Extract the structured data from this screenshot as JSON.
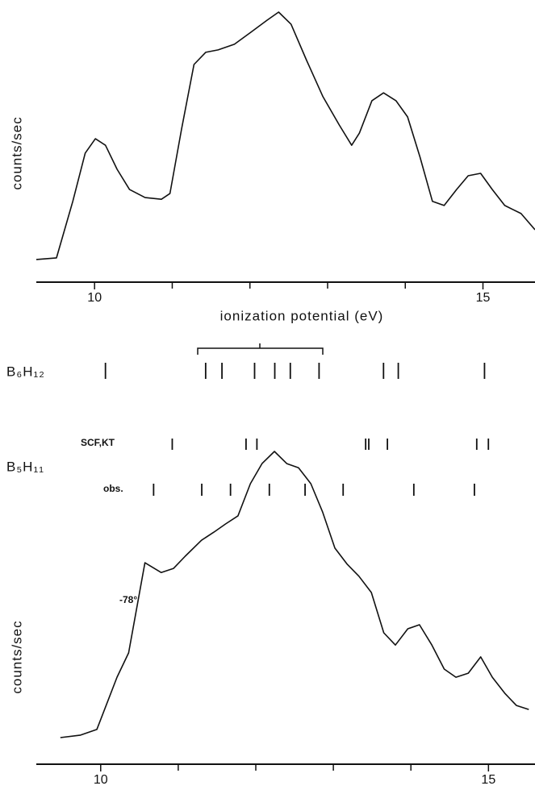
{
  "chart_data": [
    {
      "type": "line",
      "ylabel": "counts/sec",
      "xlabel": "ionization potential (eV)",
      "color": "#111111",
      "x": [
        9.25,
        9.51,
        9.72,
        9.88,
        10.01,
        10.14,
        10.29,
        10.45,
        10.65,
        10.86,
        10.97,
        11.12,
        11.28,
        11.43,
        11.59,
        11.8,
        12.01,
        12.22,
        12.37,
        12.53,
        12.73,
        12.94,
        13.15,
        13.31,
        13.41,
        13.57,
        13.72,
        13.88,
        14.03,
        14.19,
        14.35,
        14.5,
        14.66,
        14.81,
        14.97,
        15.12,
        15.28,
        15.49,
        15.67
      ],
      "values": [
        8.4,
        9.0,
        29.9,
        47.8,
        53.1,
        50.7,
        41.8,
        34.3,
        31.3,
        30.7,
        32.8,
        56.7,
        80.6,
        85.1,
        86.0,
        88.1,
        92.5,
        97.0,
        100,
        95.5,
        82.1,
        68.7,
        58.2,
        50.7,
        55.2,
        67.2,
        70.1,
        67.2,
        61.2,
        46.3,
        29.9,
        28.4,
        34.3,
        39.4,
        40.3,
        34.3,
        28.4,
        25.4,
        19.4
      ],
      "xlim": [
        9.25,
        15.67
      ],
      "xticks": [
        10,
        15
      ],
      "minor_xticks": [
        11,
        12,
        13,
        14
      ],
      "ylim": [
        0,
        100
      ]
    },
    {
      "type": "rug",
      "group_label": "B₅H₁₁",
      "color": "#111111",
      "xlim": [
        9.25,
        15.67
      ],
      "series": [
        {
          "name": "B₆H₁₂",
          "values": [
            10.14,
            11.43,
            11.64,
            12.06,
            12.32,
            12.52,
            12.89,
            13.72,
            13.91,
            15.02
          ]
        },
        {
          "name": "SCF,KT",
          "values": [
            11.0,
            11.95,
            12.09,
            13.49,
            13.53,
            13.77,
            14.92,
            15.07
          ]
        },
        {
          "name": "obs.",
          "values": [
            10.76,
            11.38,
            11.75,
            12.25,
            12.71,
            13.2,
            14.11,
            14.89
          ]
        }
      ]
    },
    {
      "type": "line",
      "ylabel": "counts/sec",
      "annotation": "-78°",
      "color": "#111111",
      "x": [
        9.48,
        9.74,
        9.95,
        10.05,
        10.21,
        10.36,
        10.57,
        10.78,
        10.94,
        11.09,
        11.3,
        11.46,
        11.61,
        11.77,
        11.93,
        12.08,
        12.24,
        12.4,
        12.55,
        12.71,
        12.86,
        13.02,
        13.18,
        13.33,
        13.49,
        13.65,
        13.8,
        13.96,
        14.11,
        14.27,
        14.43,
        14.58,
        14.74,
        14.9,
        15.05,
        15.21,
        15.36,
        15.52
      ],
      "values": [
        8.5,
        9.3,
        11.1,
        17.5,
        27.8,
        35.6,
        64.4,
        61.3,
        62.6,
        66.5,
        71.6,
        74.2,
        76.8,
        79.4,
        89.7,
        96.1,
        100,
        96.1,
        94.8,
        89.7,
        80.7,
        69.1,
        63.9,
        60.1,
        54.9,
        42.0,
        38.1,
        43.3,
        44.6,
        38.1,
        30.4,
        27.8,
        29.1,
        34.3,
        27.8,
        22.7,
        18.8,
        17.5
      ],
      "xlim": [
        9.17,
        15.6
      ],
      "xticks": [
        10,
        15
      ],
      "minor_xticks": [
        11,
        12,
        13,
        14
      ],
      "ylim": [
        0,
        100
      ]
    }
  ]
}
